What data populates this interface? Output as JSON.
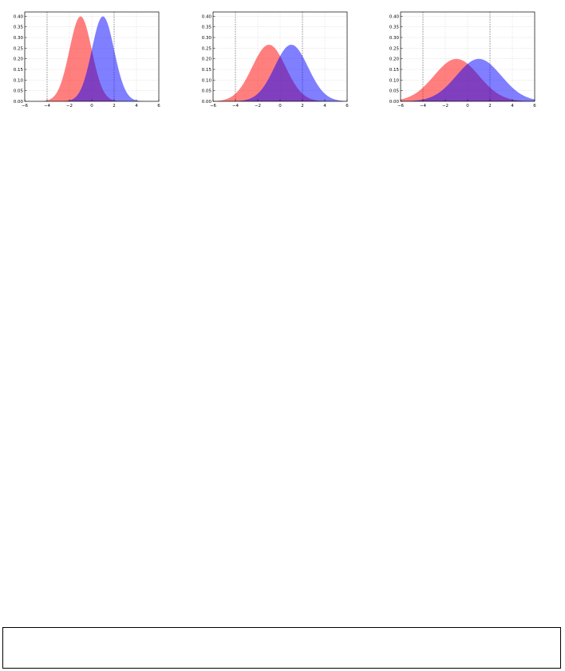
{
  "chart_data": [
    {
      "type": "area",
      "x_range": [
        -6,
        6
      ],
      "ylim": [
        0,
        0.42
      ],
      "xticks": [
        -6,
        -4,
        -2,
        0,
        2,
        4,
        6
      ],
      "yticks": [
        0.0,
        0.05,
        0.1,
        0.15,
        0.2,
        0.25,
        0.3,
        0.35,
        0.4
      ],
      "xtick_labels": [
        "−6",
        "−4",
        "−2",
        "0",
        "2",
        "4",
        "6"
      ],
      "ytick_labels": [
        "0.00",
        "0.05",
        "0.10",
        "0.15",
        "0.20",
        "0.25",
        "0.30",
        "0.35",
        "0.40"
      ],
      "grid": true,
      "vlines": [
        -4,
        2
      ],
      "series": [
        {
          "color": "#ff0000",
          "mean": -1,
          "std": 1.0
        },
        {
          "color": "#0000ff",
          "mean": 1,
          "std": 1.0
        }
      ]
    },
    {
      "type": "area",
      "x_range": [
        -6,
        6
      ],
      "ylim": [
        0,
        0.42
      ],
      "xticks": [
        -6,
        -4,
        -2,
        0,
        2,
        4,
        6
      ],
      "yticks": [
        0.0,
        0.05,
        0.1,
        0.15,
        0.2,
        0.25,
        0.3,
        0.35,
        0.4
      ],
      "xtick_labels": [
        "−6",
        "−4",
        "−2",
        "0",
        "2",
        "4",
        "6"
      ],
      "ytick_labels": [
        "0.00",
        "0.05",
        "0.10",
        "0.15",
        "0.20",
        "0.25",
        "0.30",
        "0.35",
        "0.40"
      ],
      "grid": true,
      "vlines": [
        -4,
        2
      ],
      "series": [
        {
          "color": "#ff0000",
          "mean": -1,
          "std": 1.5
        },
        {
          "color": "#0000ff",
          "mean": 1,
          "std": 1.5
        }
      ]
    },
    {
      "type": "area",
      "x_range": [
        -6,
        6
      ],
      "ylim": [
        0,
        0.42
      ],
      "xticks": [
        -6,
        -4,
        -2,
        0,
        2,
        4,
        6
      ],
      "yticks": [
        0.0,
        0.05,
        0.1,
        0.15,
        0.2,
        0.25,
        0.3,
        0.35,
        0.4
      ],
      "xtick_labels": [
        "−6",
        "−4",
        "−2",
        "0",
        "2",
        "4",
        "6"
      ],
      "ytick_labels": [
        "0.00",
        "0.05",
        "0.10",
        "0.15",
        "0.20",
        "0.25",
        "0.30",
        "0.35",
        "0.40"
      ],
      "grid": true,
      "vlines": [
        -4,
        2
      ],
      "series": [
        {
          "color": "#ff0000",
          "mean": -1,
          "std": 2.0
        },
        {
          "color": "#0000ff",
          "mean": 1,
          "std": 2.0
        }
      ]
    }
  ]
}
